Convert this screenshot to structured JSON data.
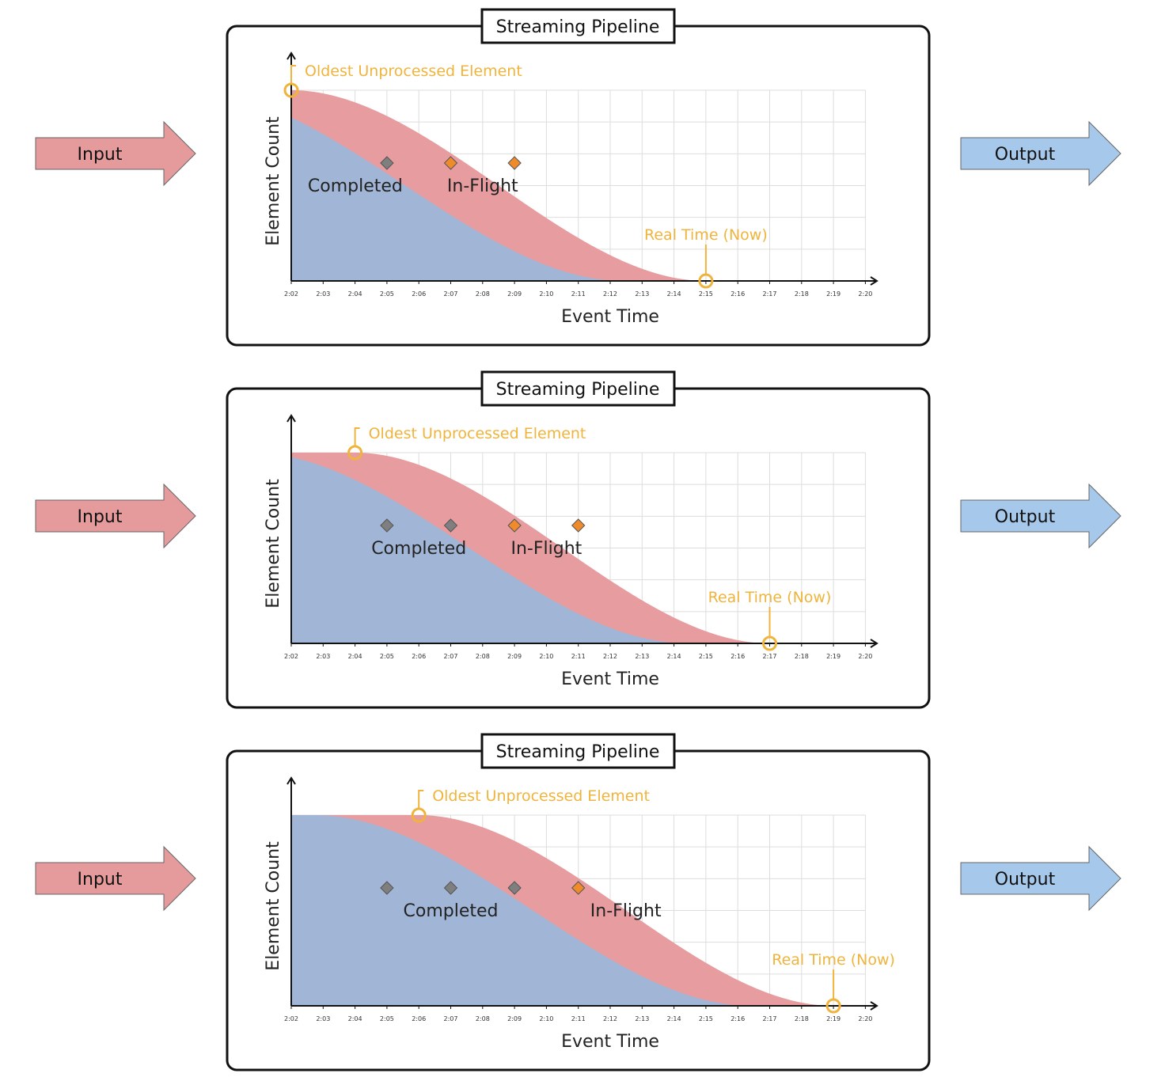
{
  "colors": {
    "input_arrow": "#e59a9c",
    "output_arrow": "#a6c8ea",
    "completed_fill": "#a1b6d6",
    "inflight_fill": "#e79c9f",
    "completed_marker": "#7f7f7f",
    "inflight_marker": "#f08b2c",
    "annotation": "#f0b43c",
    "grid": "#dddddd"
  },
  "panels": [
    {
      "title": "Streaming Pipeline",
      "input_label": "Input",
      "output_label": "Output",
      "ylabel": "Element Count",
      "xlabel": "Event Time",
      "x_ticks": [
        "2:02",
        "2:03",
        "2:04",
        "2:05",
        "2:06",
        "2:07",
        "2:08",
        "2:09",
        "2:10",
        "2:11",
        "2:12",
        "2:13",
        "2:14",
        "2:15",
        "2:16",
        "2:17",
        "2:18",
        "2:19",
        "2:20"
      ],
      "oldest_unprocessed_label": "Oldest Unprocessed Element",
      "oldest_unprocessed_time": "2:02",
      "real_time_label": "Real Time (Now)",
      "real_time": "2:15",
      "completed_label": "Completed",
      "inflight_label": "In-Flight",
      "completed_markers": [
        "2:05"
      ],
      "inflight_markers": [
        "2:07",
        "2:09"
      ]
    },
    {
      "title": "Streaming Pipeline",
      "input_label": "Input",
      "output_label": "Output",
      "ylabel": "Element Count",
      "xlabel": "Event Time",
      "x_ticks": [
        "2:02",
        "2:03",
        "2:04",
        "2:05",
        "2:06",
        "2:07",
        "2:08",
        "2:09",
        "2:10",
        "2:11",
        "2:12",
        "2:13",
        "2:14",
        "2:15",
        "2:16",
        "2:17",
        "2:18",
        "2:19",
        "2:20"
      ],
      "oldest_unprocessed_label": "Oldest Unprocessed Element",
      "oldest_unprocessed_time": "2:04",
      "real_time_label": "Real Time (Now)",
      "real_time": "2:17",
      "completed_label": "Completed",
      "inflight_label": "In-Flight",
      "completed_markers": [
        "2:05",
        "2:07"
      ],
      "inflight_markers": [
        "2:09",
        "2:11"
      ]
    },
    {
      "title": "Streaming Pipeline",
      "input_label": "Input",
      "output_label": "Output",
      "ylabel": "Element Count",
      "xlabel": "Event Time",
      "x_ticks": [
        "2:02",
        "2:03",
        "2:04",
        "2:05",
        "2:06",
        "2:07",
        "2:08",
        "2:09",
        "2:10",
        "2:11",
        "2:12",
        "2:13",
        "2:14",
        "2:15",
        "2:16",
        "2:17",
        "2:18",
        "2:19",
        "2:20"
      ],
      "oldest_unprocessed_label": "Oldest Unprocessed Element",
      "oldest_unprocessed_time": "2:06",
      "real_time_label": "Real Time (Now)",
      "real_time": "2:19",
      "completed_label": "Completed",
      "inflight_label": "In-Flight",
      "completed_markers": [
        "2:05",
        "2:07",
        "2:09"
      ],
      "inflight_markers": [
        "2:11"
      ]
    }
  ]
}
